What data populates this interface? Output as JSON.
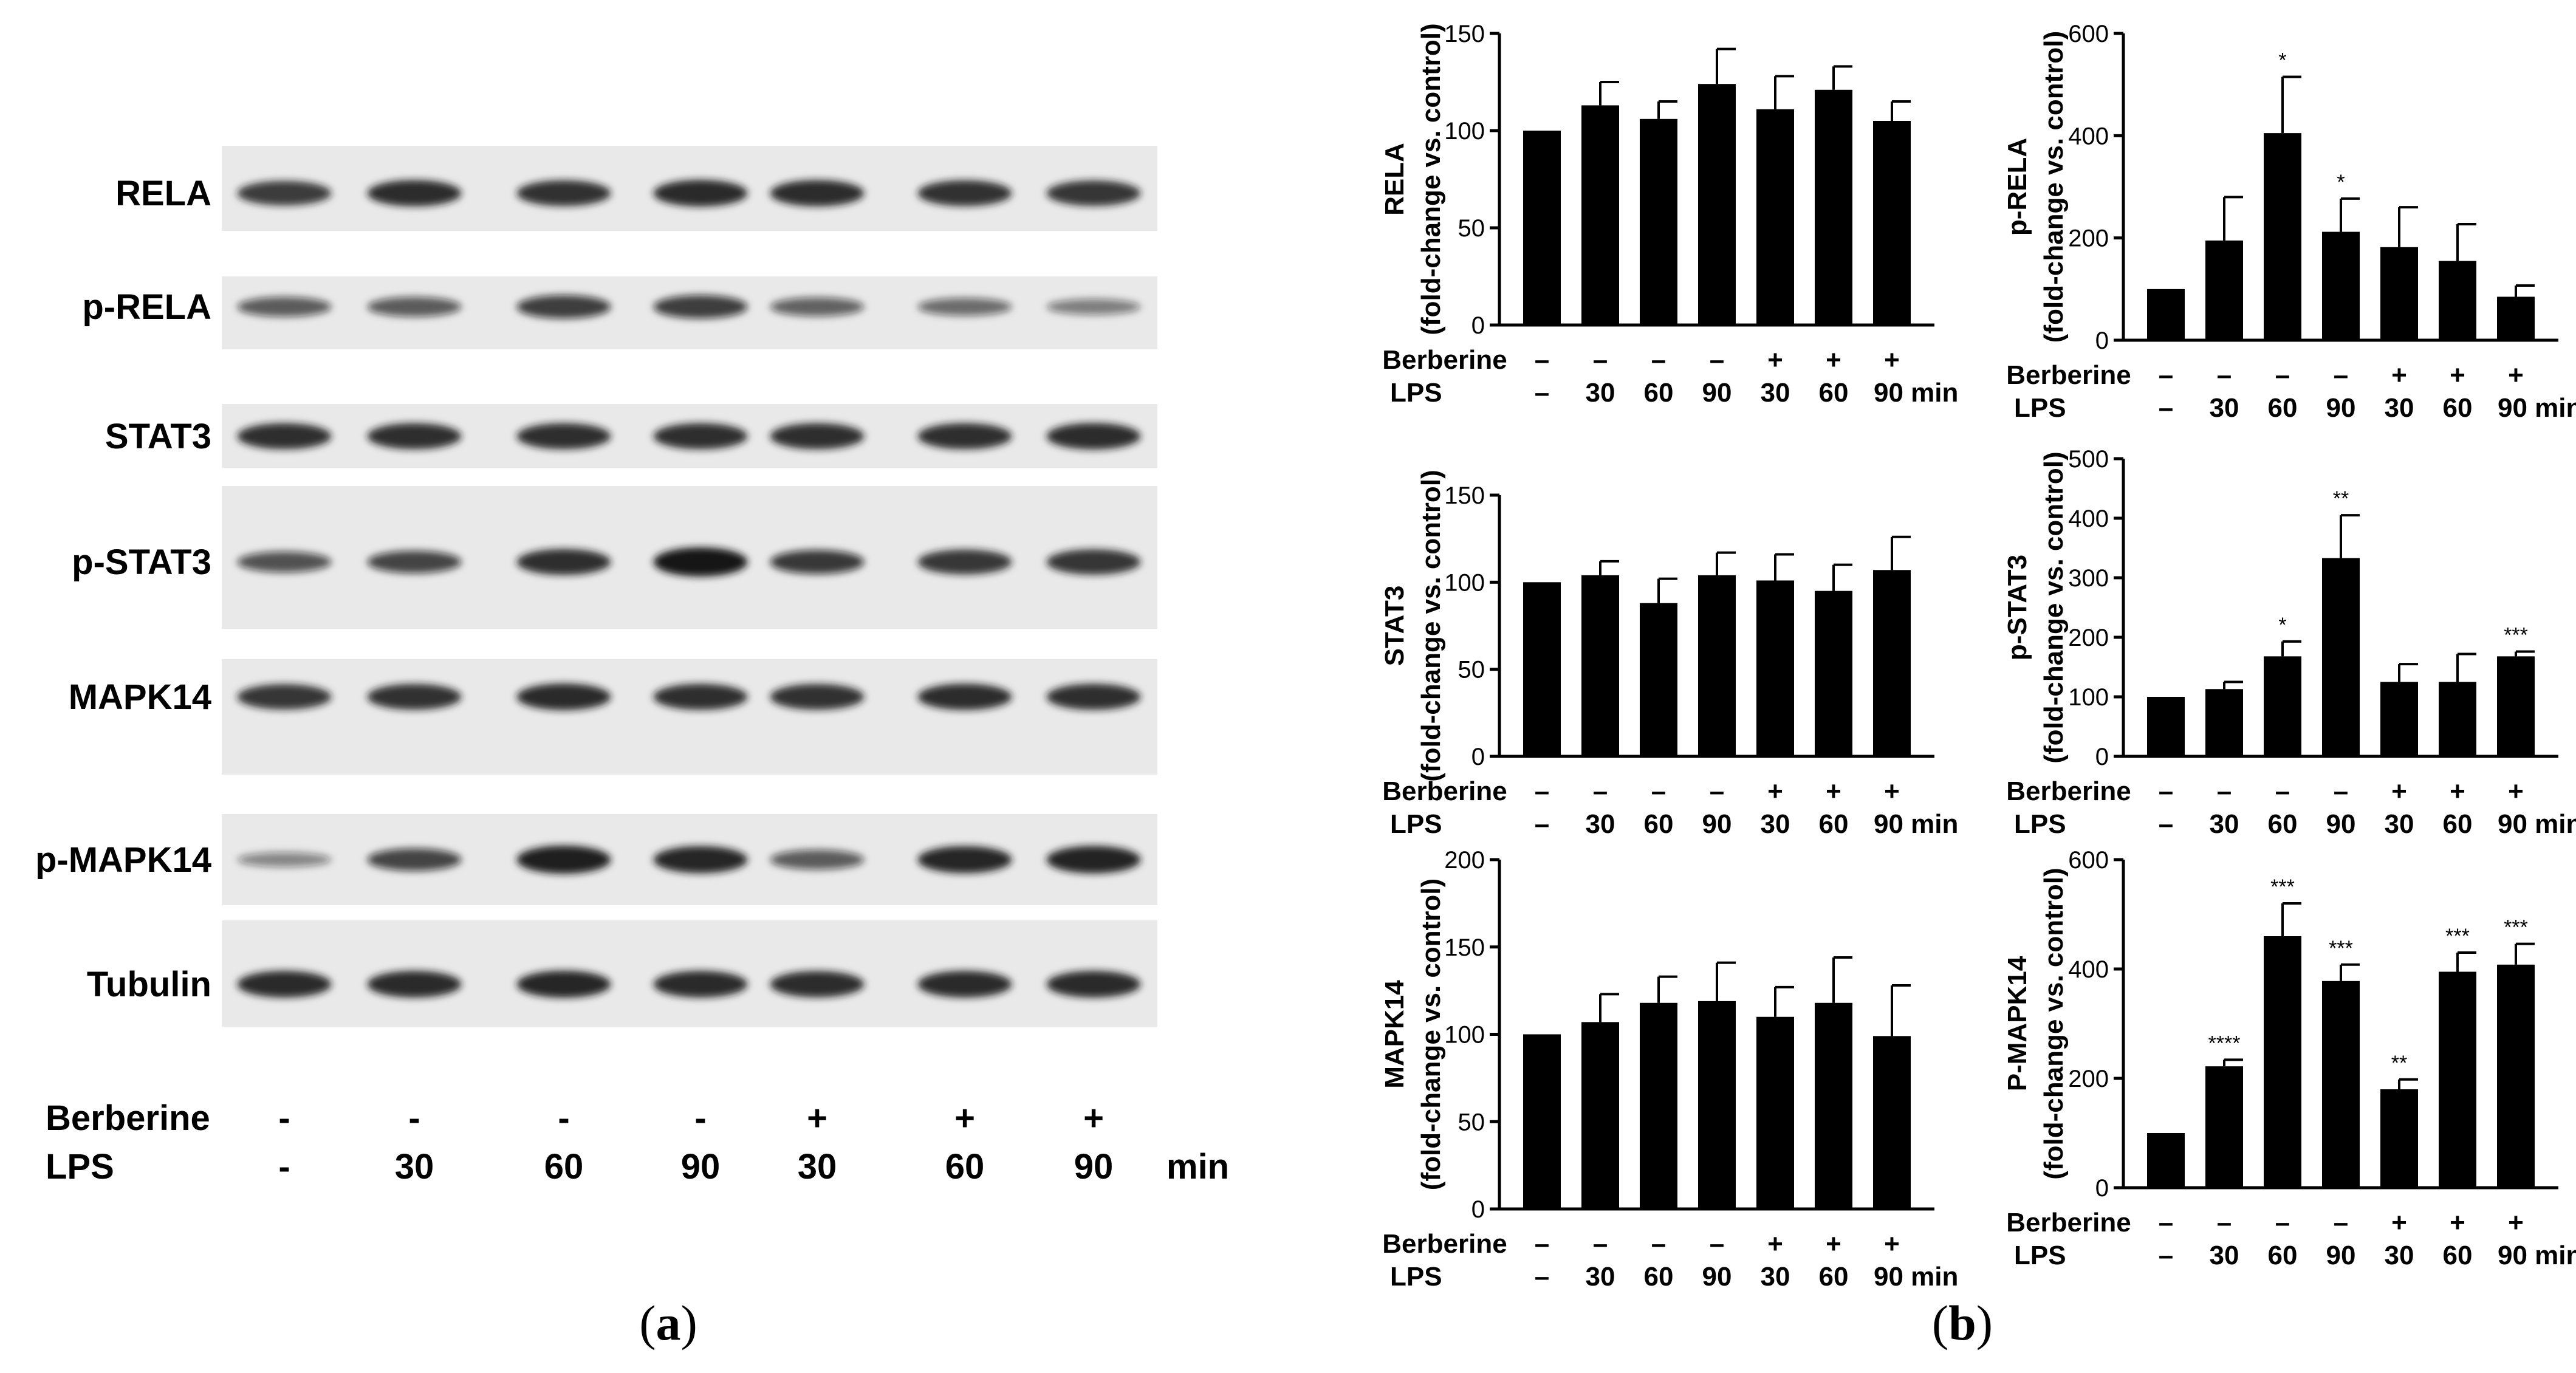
{
  "panel_a": {
    "label": "(a)",
    "label_letter": "a",
    "blots": [
      "RELA",
      "p-RELA",
      "STAT3",
      "p-STAT3",
      "MAPK14",
      "p-MAPK14",
      "Tubulin"
    ],
    "berberine_label": "Berberine",
    "lps_label": "LPS",
    "berberine": [
      "-",
      "-",
      "-",
      "-",
      "+",
      "+",
      "+"
    ],
    "lps": [
      "-",
      "30",
      "60",
      "90",
      "30",
      "60",
      "90"
    ],
    "unit": "min",
    "band_intensity": [
      [
        0.78,
        0.86,
        0.84,
        0.88,
        0.86,
        0.84,
        0.82
      ],
      [
        0.55,
        0.55,
        0.72,
        0.72,
        0.5,
        0.45,
        0.35
      ],
      [
        0.85,
        0.85,
        0.85,
        0.85,
        0.85,
        0.85,
        0.87
      ],
      [
        0.6,
        0.68,
        0.85,
        1.0,
        0.75,
        0.8,
        0.82
      ],
      [
        0.82,
        0.84,
        0.88,
        0.85,
        0.84,
        0.86,
        0.85
      ],
      [
        0.3,
        0.68,
        0.95,
        0.9,
        0.55,
        0.9,
        0.92
      ],
      [
        0.88,
        0.88,
        0.9,
        0.88,
        0.86,
        0.88,
        0.88
      ]
    ]
  },
  "panel_b": {
    "label": "(b)",
    "label_letter": "b",
    "common_ylabel": "(fold-change vs. control)",
    "berberine_label": "Berberine",
    "lps_label": "LPS",
    "berberine": [
      "–",
      "–",
      "–",
      "–",
      "+",
      "+",
      "+"
    ],
    "lps": [
      "–",
      "30",
      "60",
      "90",
      "30",
      "60",
      "90 min"
    ]
  },
  "chart_data": [
    {
      "type": "bar",
      "ylabel": "RELA",
      "ylim": [
        0,
        150
      ],
      "yticks": [
        0,
        50,
        100,
        150
      ],
      "values": [
        100,
        113,
        106,
        124,
        111,
        121,
        105
      ],
      "errors": [
        0,
        12,
        9,
        18,
        17,
        12,
        10
      ],
      "annotations": [
        "",
        "",
        "",
        "",
        "",
        "",
        ""
      ]
    },
    {
      "type": "bar",
      "ylabel": "p-RELA",
      "ylim": [
        0,
        600
      ],
      "yticks": [
        0,
        200,
        400,
        600
      ],
      "values": [
        100,
        195,
        405,
        212,
        182,
        155,
        85
      ],
      "errors": [
        0,
        85,
        110,
        65,
        78,
        72,
        22
      ],
      "annotations": [
        "",
        "",
        "*",
        "*",
        "",
        "",
        ""
      ]
    },
    {
      "type": "bar",
      "ylabel": "STAT3",
      "ylim": [
        0,
        150
      ],
      "yticks": [
        0,
        50,
        100,
        150
      ],
      "values": [
        100,
        104,
        88,
        104,
        101,
        95,
        107
      ],
      "errors": [
        0,
        8,
        14,
        13,
        15,
        15,
        19
      ],
      "annotations": [
        "",
        "",
        "",
        "",
        "",
        "",
        ""
      ]
    },
    {
      "type": "bar",
      "ylabel": "p-STAT3",
      "ylim": [
        0,
        500
      ],
      "yticks": [
        0,
        100,
        200,
        300,
        400,
        500
      ],
      "values": [
        100,
        113,
        168,
        333,
        125,
        125,
        168
      ],
      "errors": [
        0,
        12,
        25,
        72,
        30,
        47,
        8
      ],
      "annotations": [
        "",
        "",
        "*",
        "**",
        "",
        "",
        "***"
      ]
    },
    {
      "type": "bar",
      "ylabel": "MAPK14",
      "ylim": [
        0,
        200
      ],
      "yticks": [
        0,
        50,
        100,
        150,
        200
      ],
      "values": [
        100,
        107,
        118,
        119,
        110,
        118,
        99
      ],
      "errors": [
        0,
        16,
        15,
        22,
        17,
        26,
        29
      ],
      "annotations": [
        "",
        "",
        "",
        "",
        "",
        "",
        ""
      ]
    },
    {
      "type": "bar",
      "ylabel": "P-MAPK14",
      "ylim": [
        0,
        600
      ],
      "yticks": [
        0,
        200,
        400,
        600
      ],
      "values": [
        100,
        222,
        460,
        378,
        180,
        395,
        408
      ],
      "errors": [
        0,
        12,
        60,
        30,
        18,
        35,
        38
      ],
      "annotations": [
        "",
        "****",
        "***",
        "***",
        "**",
        "***",
        "***"
      ]
    }
  ],
  "colors": {
    "bar": "#000000",
    "blot_bg": "#e9e9e9",
    "band": "#141414"
  }
}
